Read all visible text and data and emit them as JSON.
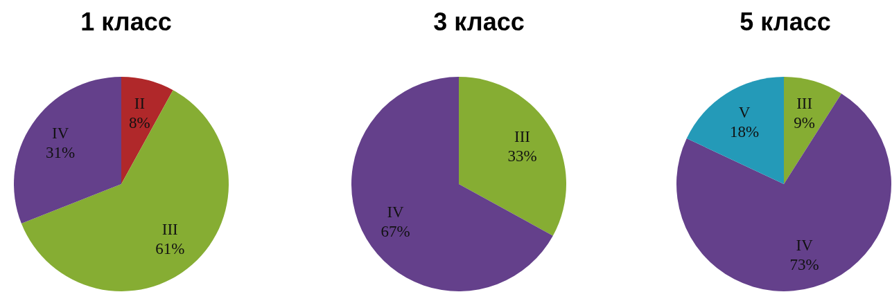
{
  "chart_data": [
    {
      "type": "pie",
      "title": "1 класс",
      "categories": [
        "II",
        "III",
        "IV"
      ],
      "values": [
        8,
        61,
        31
      ],
      "value_labels": [
        "8%",
        "61%",
        "31%"
      ],
      "colors": [
        "#b0282a",
        "#86ad33",
        "#64408b"
      ]
    },
    {
      "type": "pie",
      "title": "3 класс",
      "categories": [
        "III",
        "IV"
      ],
      "values": [
        33,
        67
      ],
      "value_labels": [
        "33%",
        "67%"
      ],
      "colors": [
        "#86ad33",
        "#64408b"
      ]
    },
    {
      "type": "pie",
      "title": "5 класс",
      "categories": [
        "III",
        "IV",
        "V"
      ],
      "values": [
        9,
        73,
        18
      ],
      "value_labels": [
        "9%",
        "73%",
        "18%"
      ],
      "colors": [
        "#86ad33",
        "#64408b",
        "#249ab8"
      ]
    }
  ]
}
